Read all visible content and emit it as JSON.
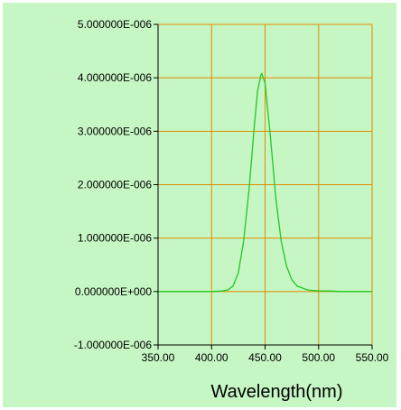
{
  "chart_data": {
    "type": "line",
    "title": "",
    "xlabel": "Wavelength(nm)",
    "ylabel": "",
    "xlim": [
      350,
      550
    ],
    "ylim": [
      -1e-06,
      5e-06
    ],
    "x_ticks": [
      350,
      400,
      450,
      500,
      550
    ],
    "x_tick_labels": [
      "350.00",
      "400.00",
      "450.00",
      "500.00",
      "550.00"
    ],
    "y_ticks": [
      -1e-06,
      0,
      1e-06,
      2e-06,
      3e-06,
      4e-06,
      5e-06
    ],
    "y_tick_labels": [
      "-1.000000E-006",
      "0.000000E+000",
      "1.000000E-006",
      "2.000000E-006",
      "3.000000E-006",
      "4.000000E-006",
      "5.000000E-006"
    ],
    "grid": true,
    "colors": {
      "background": "#c6f6c3",
      "grid": "#e08a00",
      "line": "#22c822",
      "axis": "#000000"
    },
    "series": [
      {
        "x": [
          350,
          380,
          400,
          410,
          415,
          420,
          425,
          430,
          435,
          440,
          443,
          446,
          447,
          450,
          455,
          460,
          465,
          470,
          475,
          480,
          490,
          500,
          510,
          520,
          530,
          550
        ],
        "y": [
          0,
          0,
          0,
          1e-08,
          3e-08,
          1e-07,
          3.5e-07,
          9.5e-07,
          1.9e-06,
          3.1e-06,
          3.75e-06,
          4.05e-06,
          4.08e-06,
          3.9e-06,
          2.9e-06,
          1.75e-06,
          9.5e-07,
          4.8e-07,
          2.2e-07,
          1e-07,
          3e-08,
          1e-08,
          1e-08,
          0,
          0,
          0
        ]
      }
    ]
  }
}
